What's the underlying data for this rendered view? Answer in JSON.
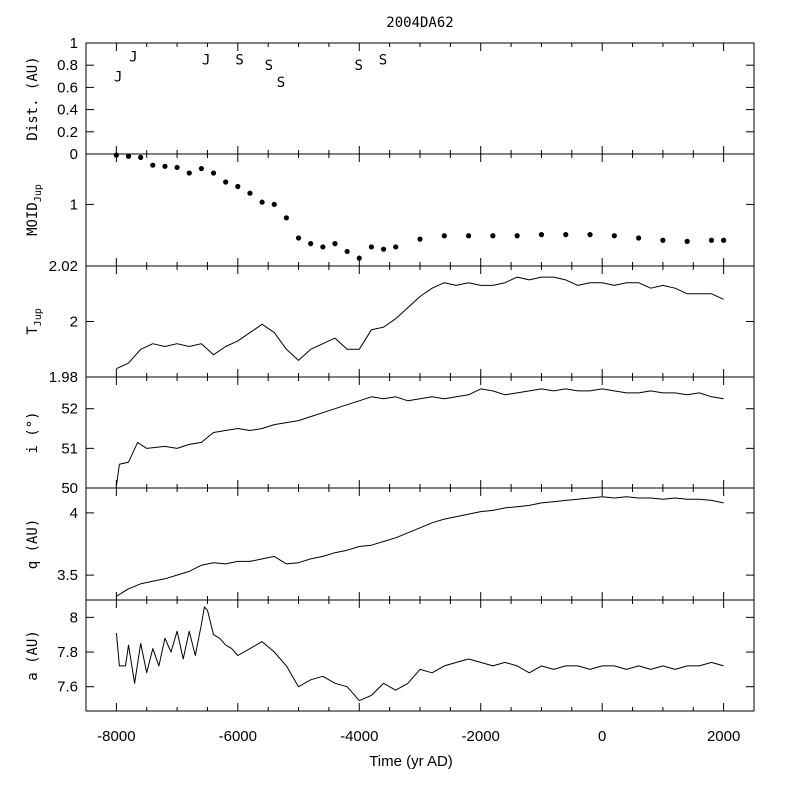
{
  "chart_data": {
    "type": "line",
    "title": "2004DA62",
    "xlabel": "Time (yr AD)",
    "xlim": [
      -8500,
      2500
    ],
    "xticks": [
      -8000,
      -6000,
      -4000,
      -2000,
      0,
      2000
    ],
    "xtick_labels": [
      "-8000",
      "-6000",
      "-4000",
      "-2000",
      "0",
      "2000"
    ],
    "panels": [
      {
        "id": "dist",
        "ylabel": "Dist. (AU)",
        "ylim": [
          0,
          1
        ],
        "yticks": [
          0,
          0.2,
          0.4,
          0.6,
          0.8,
          1
        ],
        "ytick_labels": [
          "0",
          "0.2",
          "0.4",
          "0.6",
          "0.8",
          "1"
        ],
        "encounters": [
          {
            "x": -7970,
            "y": 0.7,
            "label": "J"
          },
          {
            "x": -7720,
            "y": 0.88,
            "label": "J"
          },
          {
            "x": -6520,
            "y": 0.85,
            "label": "J"
          },
          {
            "x": -5970,
            "y": 0.85,
            "label": "S"
          },
          {
            "x": -5490,
            "y": 0.8,
            "label": "S"
          },
          {
            "x": -5290,
            "y": 0.65,
            "label": "S"
          },
          {
            "x": -4010,
            "y": 0.8,
            "label": "S"
          },
          {
            "x": -3610,
            "y": 0.85,
            "label": "S"
          }
        ]
      },
      {
        "id": "moid",
        "ylabel": "MOID",
        "ylabel_sub": "Jup",
        "ylim": [
          0.55,
          1.55
        ],
        "reverse": true,
        "style": "dots",
        "yticks": [
          1
        ],
        "ytick_labels": [
          "1"
        ],
        "points": [
          [
            -8000,
            0.56
          ],
          [
            -7800,
            0.57
          ],
          [
            -7600,
            0.58
          ],
          [
            -7400,
            0.65
          ],
          [
            -7200,
            0.66
          ],
          [
            -7000,
            0.67
          ],
          [
            -6800,
            0.72
          ],
          [
            -6600,
            0.68
          ],
          [
            -6400,
            0.72
          ],
          [
            -6200,
            0.8
          ],
          [
            -6000,
            0.84
          ],
          [
            -5800,
            0.9
          ],
          [
            -5600,
            0.98
          ],
          [
            -5400,
            1.0
          ],
          [
            -5200,
            1.12
          ],
          [
            -5000,
            1.3
          ],
          [
            -4800,
            1.35
          ],
          [
            -4600,
            1.38
          ],
          [
            -4400,
            1.35
          ],
          [
            -4200,
            1.42
          ],
          [
            -4000,
            1.48
          ],
          [
            -3800,
            1.38
          ],
          [
            -3600,
            1.4
          ],
          [
            -3400,
            1.38
          ],
          [
            -3000,
            1.31
          ],
          [
            -2600,
            1.28
          ],
          [
            -2200,
            1.28
          ],
          [
            -1800,
            1.28
          ],
          [
            -1400,
            1.28
          ],
          [
            -1000,
            1.27
          ],
          [
            -600,
            1.27
          ],
          [
            -200,
            1.27
          ],
          [
            200,
            1.28
          ],
          [
            600,
            1.3
          ],
          [
            1000,
            1.32
          ],
          [
            1400,
            1.33
          ],
          [
            1800,
            1.32
          ],
          [
            2000,
            1.32
          ]
        ]
      },
      {
        "id": "tjup",
        "ylabel": "T",
        "ylabel_sub": "Jup",
        "ylim": [
          1.98,
          2.02
        ],
        "yticks": [
          1.98,
          2,
          2.02
        ],
        "ytick_labels": [
          "1.98",
          "2",
          "2.02"
        ],
        "points": [
          [
            -8000,
            1.983
          ],
          [
            -7800,
            1.985
          ],
          [
            -7600,
            1.99
          ],
          [
            -7400,
            1.992
          ],
          [
            -7200,
            1.991
          ],
          [
            -7000,
            1.992
          ],
          [
            -6800,
            1.991
          ],
          [
            -6600,
            1.992
          ],
          [
            -6400,
            1.988
          ],
          [
            -6200,
            1.991
          ],
          [
            -6000,
            1.993
          ],
          [
            -5800,
            1.996
          ],
          [
            -5600,
            1.999
          ],
          [
            -5400,
            1.996
          ],
          [
            -5200,
            1.99
          ],
          [
            -5000,
            1.986
          ],
          [
            -4800,
            1.99
          ],
          [
            -4600,
            1.992
          ],
          [
            -4400,
            1.994
          ],
          [
            -4200,
            1.99
          ],
          [
            -4000,
            1.99
          ],
          [
            -3800,
            1.997
          ],
          [
            -3600,
            1.998
          ],
          [
            -3400,
            2.001
          ],
          [
            -3200,
            2.005
          ],
          [
            -3000,
            2.009
          ],
          [
            -2800,
            2.012
          ],
          [
            -2600,
            2.014
          ],
          [
            -2400,
            2.013
          ],
          [
            -2200,
            2.014
          ],
          [
            -2000,
            2.013
          ],
          [
            -1800,
            2.013
          ],
          [
            -1600,
            2.014
          ],
          [
            -1400,
            2.016
          ],
          [
            -1200,
            2.015
          ],
          [
            -1000,
            2.016
          ],
          [
            -800,
            2.016
          ],
          [
            -600,
            2.015
          ],
          [
            -400,
            2.013
          ],
          [
            -200,
            2.014
          ],
          [
            0,
            2.014
          ],
          [
            200,
            2.013
          ],
          [
            400,
            2.014
          ],
          [
            600,
            2.014
          ],
          [
            800,
            2.012
          ],
          [
            1000,
            2.013
          ],
          [
            1200,
            2.012
          ],
          [
            1400,
            2.01
          ],
          [
            1600,
            2.01
          ],
          [
            1800,
            2.01
          ],
          [
            2000,
            2.008
          ]
        ]
      },
      {
        "id": "incl",
        "ylabel": "i (°)",
        "ylim": [
          50,
          52.8
        ],
        "yticks": [
          50,
          51,
          52
        ],
        "ytick_labels": [
          "50",
          "51",
          "52"
        ],
        "points": [
          [
            -8000,
            50.05
          ],
          [
            -7950,
            50.6
          ],
          [
            -7800,
            50.65
          ],
          [
            -7650,
            51.15
          ],
          [
            -7500,
            51.0
          ],
          [
            -7200,
            51.05
          ],
          [
            -7000,
            51.0
          ],
          [
            -6800,
            51.1
          ],
          [
            -6600,
            51.15
          ],
          [
            -6400,
            51.4
          ],
          [
            -6200,
            51.45
          ],
          [
            -6000,
            51.5
          ],
          [
            -5800,
            51.45
          ],
          [
            -5600,
            51.5
          ],
          [
            -5400,
            51.6
          ],
          [
            -5200,
            51.65
          ],
          [
            -5000,
            51.7
          ],
          [
            -4800,
            51.8
          ],
          [
            -4600,
            51.9
          ],
          [
            -4400,
            52.0
          ],
          [
            -4200,
            52.1
          ],
          [
            -4000,
            52.2
          ],
          [
            -3800,
            52.3
          ],
          [
            -3600,
            52.25
          ],
          [
            -3400,
            52.3
          ],
          [
            -3200,
            52.2
          ],
          [
            -3000,
            52.25
          ],
          [
            -2800,
            52.3
          ],
          [
            -2600,
            52.25
          ],
          [
            -2400,
            52.3
          ],
          [
            -2200,
            52.35
          ],
          [
            -2000,
            52.5
          ],
          [
            -1800,
            52.45
          ],
          [
            -1600,
            52.35
          ],
          [
            -1400,
            52.4
          ],
          [
            -1200,
            52.45
          ],
          [
            -1000,
            52.5
          ],
          [
            -800,
            52.45
          ],
          [
            -600,
            52.5
          ],
          [
            -400,
            52.45
          ],
          [
            -200,
            52.45
          ],
          [
            0,
            52.5
          ],
          [
            200,
            52.45
          ],
          [
            400,
            52.4
          ],
          [
            600,
            52.4
          ],
          [
            800,
            52.45
          ],
          [
            1000,
            52.4
          ],
          [
            1200,
            52.4
          ],
          [
            1400,
            52.35
          ],
          [
            1600,
            52.4
          ],
          [
            1800,
            52.3
          ],
          [
            2000,
            52.25
          ]
        ]
      },
      {
        "id": "q",
        "ylabel": "q (AU)",
        "ylim": [
          3.3,
          4.2
        ],
        "yticks": [
          3.5,
          4
        ],
        "ytick_labels": [
          "3.5",
          "4"
        ],
        "points": [
          [
            -8000,
            3.33
          ],
          [
            -7800,
            3.39
          ],
          [
            -7600,
            3.43
          ],
          [
            -7400,
            3.45
          ],
          [
            -7200,
            3.47
          ],
          [
            -7000,
            3.5
          ],
          [
            -6800,
            3.53
          ],
          [
            -6600,
            3.58
          ],
          [
            -6400,
            3.6
          ],
          [
            -6200,
            3.59
          ],
          [
            -6000,
            3.61
          ],
          [
            -5800,
            3.61
          ],
          [
            -5600,
            3.63
          ],
          [
            -5400,
            3.65
          ],
          [
            -5200,
            3.59
          ],
          [
            -5000,
            3.6
          ],
          [
            -4800,
            3.63
          ],
          [
            -4600,
            3.65
          ],
          [
            -4400,
            3.68
          ],
          [
            -4200,
            3.7
          ],
          [
            -4000,
            3.73
          ],
          [
            -3800,
            3.74
          ],
          [
            -3600,
            3.77
          ],
          [
            -3400,
            3.8
          ],
          [
            -3200,
            3.84
          ],
          [
            -3000,
            3.88
          ],
          [
            -2800,
            3.92
          ],
          [
            -2600,
            3.95
          ],
          [
            -2400,
            3.97
          ],
          [
            -2200,
            3.99
          ],
          [
            -2000,
            4.01
          ],
          [
            -1800,
            4.02
          ],
          [
            -1600,
            4.04
          ],
          [
            -1400,
            4.05
          ],
          [
            -1200,
            4.06
          ],
          [
            -1000,
            4.08
          ],
          [
            -800,
            4.09
          ],
          [
            -600,
            4.1
          ],
          [
            -400,
            4.11
          ],
          [
            -200,
            4.12
          ],
          [
            0,
            4.13
          ],
          [
            200,
            4.12
          ],
          [
            400,
            4.13
          ],
          [
            600,
            4.12
          ],
          [
            800,
            4.12
          ],
          [
            1000,
            4.11
          ],
          [
            1200,
            4.12
          ],
          [
            1400,
            4.11
          ],
          [
            1600,
            4.11
          ],
          [
            1800,
            4.1
          ],
          [
            2000,
            4.08
          ]
        ]
      },
      {
        "id": "a",
        "ylabel": "a (AU)",
        "ylim": [
          7.46,
          8.1
        ],
        "yticks": [
          7.6,
          7.8,
          8
        ],
        "ytick_labels": [
          "7.6",
          "7.8",
          "8"
        ],
        "points": [
          [
            -8000,
            7.91
          ],
          [
            -7950,
            7.72
          ],
          [
            -7850,
            7.72
          ],
          [
            -7800,
            7.84
          ],
          [
            -7700,
            7.62
          ],
          [
            -7600,
            7.85
          ],
          [
            -7500,
            7.68
          ],
          [
            -7400,
            7.82
          ],
          [
            -7300,
            7.72
          ],
          [
            -7200,
            7.88
          ],
          [
            -7100,
            7.8
          ],
          [
            -7000,
            7.92
          ],
          [
            -6900,
            7.76
          ],
          [
            -6800,
            7.92
          ],
          [
            -6700,
            7.78
          ],
          [
            -6600,
            7.96
          ],
          [
            -6550,
            8.06
          ],
          [
            -6500,
            8.04
          ],
          [
            -6400,
            7.9
          ],
          [
            -6300,
            7.88
          ],
          [
            -6200,
            7.84
          ],
          [
            -6100,
            7.82
          ],
          [
            -6000,
            7.78
          ],
          [
            -5800,
            7.82
          ],
          [
            -5600,
            7.86
          ],
          [
            -5400,
            7.8
          ],
          [
            -5200,
            7.72
          ],
          [
            -5000,
            7.6
          ],
          [
            -4800,
            7.64
          ],
          [
            -4600,
            7.66
          ],
          [
            -4400,
            7.62
          ],
          [
            -4200,
            7.6
          ],
          [
            -4000,
            7.52
          ],
          [
            -3800,
            7.55
          ],
          [
            -3600,
            7.62
          ],
          [
            -3400,
            7.58
          ],
          [
            -3200,
            7.62
          ],
          [
            -3000,
            7.7
          ],
          [
            -2800,
            7.68
          ],
          [
            -2600,
            7.72
          ],
          [
            -2400,
            7.74
          ],
          [
            -2200,
            7.76
          ],
          [
            -2000,
            7.74
          ],
          [
            -1800,
            7.72
          ],
          [
            -1600,
            7.74
          ],
          [
            -1400,
            7.72
          ],
          [
            -1200,
            7.68
          ],
          [
            -1000,
            7.72
          ],
          [
            -800,
            7.7
          ],
          [
            -600,
            7.72
          ],
          [
            -400,
            7.72
          ],
          [
            -200,
            7.7
          ],
          [
            0,
            7.72
          ],
          [
            200,
            7.72
          ],
          [
            400,
            7.7
          ],
          [
            600,
            7.72
          ],
          [
            800,
            7.7
          ],
          [
            1000,
            7.72
          ],
          [
            1200,
            7.7
          ],
          [
            1400,
            7.72
          ],
          [
            1600,
            7.72
          ],
          [
            1800,
            7.74
          ],
          [
            2000,
            7.72
          ]
        ]
      }
    ]
  }
}
